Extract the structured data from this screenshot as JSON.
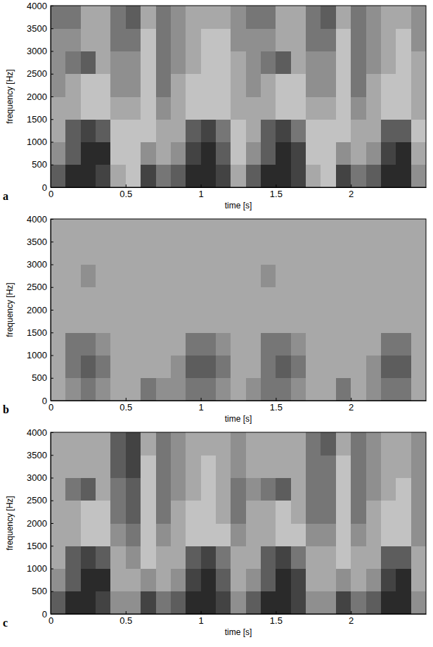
{
  "chart_data": [
    {
      "type": "heatmap",
      "panel": "a",
      "x_label": "time [s]",
      "y_label": "frequency [Hz]",
      "xlim": [
        0,
        2.5
      ],
      "ylim": [
        0,
        4000
      ],
      "xticks": [
        0,
        0.5,
        1,
        1.5,
        2
      ],
      "yticks": [
        0,
        500,
        1000,
        1500,
        2000,
        2500,
        3000,
        3500,
        4000
      ],
      "x_bins": [
        0,
        0.1,
        0.2,
        0.3,
        0.4,
        0.5,
        0.6,
        0.7,
        0.8,
        0.9,
        1,
        1.1,
        1.2,
        1.3,
        1.4,
        1.5,
        1.6,
        1.7,
        1.8,
        1.9,
        2,
        2.1,
        2.2,
        2.3,
        2.4,
        2.5
      ],
      "y_bins": [
        0,
        500,
        1000,
        1500,
        2000,
        2500,
        3000,
        3500,
        4000
      ],
      "zlim": [
        0,
        9
      ],
      "cells": [
        [
          6,
          8,
          8,
          7,
          3,
          2,
          7,
          5,
          6,
          8,
          8,
          7,
          3,
          6,
          8,
          8,
          7,
          3,
          2,
          7,
          5,
          6,
          8,
          8,
          4
        ],
        [
          4,
          6,
          8,
          8,
          2,
          2,
          4,
          3,
          4,
          7,
          8,
          6,
          2,
          4,
          6,
          8,
          7,
          2,
          2,
          4,
          3,
          4,
          7,
          8,
          3
        ],
        [
          3,
          6,
          7,
          6,
          2,
          2,
          2,
          3,
          3,
          6,
          7,
          5,
          2,
          3,
          6,
          7,
          5,
          2,
          2,
          2,
          3,
          3,
          6,
          6,
          2
        ],
        [
          3,
          3,
          2,
          2,
          3,
          3,
          2,
          4,
          3,
          2,
          2,
          2,
          3,
          3,
          3,
          2,
          2,
          3,
          3,
          2,
          4,
          3,
          2,
          2,
          3
        ],
        [
          4,
          3,
          2,
          2,
          4,
          4,
          2,
          5,
          3,
          2,
          2,
          2,
          3,
          4,
          3,
          2,
          2,
          4,
          4,
          2,
          5,
          3,
          2,
          2,
          3
        ],
        [
          4,
          5,
          6,
          3,
          4,
          4,
          2,
          5,
          4,
          3,
          2,
          2,
          3,
          4,
          5,
          6,
          3,
          4,
          4,
          2,
          5,
          4,
          3,
          2,
          3
        ],
        [
          4,
          4,
          3,
          3,
          5,
          5,
          2,
          5,
          4,
          3,
          2,
          2,
          4,
          4,
          4,
          3,
          3,
          5,
          5,
          2,
          5,
          4,
          3,
          2,
          4
        ],
        [
          5,
          5,
          3,
          3,
          5,
          6,
          3,
          5,
          4,
          3,
          3,
          3,
          4,
          5,
          5,
          3,
          3,
          5,
          6,
          3,
          5,
          4,
          3,
          3,
          4
        ]
      ]
    },
    {
      "type": "heatmap",
      "panel": "b",
      "x_label": "time [s]",
      "y_label": "frequency [Hz]",
      "xlim": [
        0,
        2.5
      ],
      "ylim": [
        0,
        4000
      ],
      "xticks": [
        0,
        0.5,
        1,
        1.5,
        2
      ],
      "yticks": [
        0,
        500,
        1000,
        1500,
        2000,
        2500,
        3000,
        3500,
        4000
      ],
      "x_bins": [
        0,
        0.1,
        0.2,
        0.3,
        0.4,
        0.5,
        0.6,
        0.7,
        0.8,
        0.9,
        1,
        1.1,
        1.2,
        1.3,
        1.4,
        1.5,
        1.6,
        1.7,
        1.8,
        1.9,
        2,
        2.1,
        2.2,
        2.3,
        2.4,
        2.5
      ],
      "y_bins": [
        0,
        500,
        1000,
        1500,
        2000,
        2500,
        3000,
        3500,
        4000
      ],
      "zlim": [
        0,
        9
      ],
      "cells": [
        [
          3,
          4,
          5,
          4,
          3,
          3,
          5,
          4,
          4,
          5,
          5,
          4,
          3,
          4,
          5,
          5,
          4,
          3,
          3,
          5,
          3,
          4,
          5,
          5,
          3
        ],
        [
          3,
          5,
          6,
          5,
          3,
          3,
          3,
          3,
          4,
          6,
          6,
          5,
          3,
          3,
          5,
          6,
          5,
          3,
          3,
          3,
          3,
          4,
          6,
          6,
          3
        ],
        [
          3,
          5,
          5,
          4,
          3,
          3,
          3,
          3,
          3,
          5,
          5,
          4,
          3,
          3,
          5,
          5,
          4,
          3,
          3,
          3,
          3,
          3,
          5,
          5,
          3
        ],
        [
          3,
          3,
          3,
          3,
          3,
          3,
          3,
          3,
          3,
          3,
          3,
          3,
          3,
          3,
          3,
          3,
          3,
          3,
          3,
          3,
          3,
          3,
          3,
          3,
          3
        ],
        [
          3,
          3,
          3,
          3,
          3,
          3,
          3,
          3,
          3,
          3,
          3,
          3,
          3,
          3,
          3,
          3,
          3,
          3,
          3,
          3,
          3,
          3,
          3,
          3,
          3
        ],
        [
          3,
          3,
          4,
          3,
          3,
          3,
          3,
          3,
          3,
          3,
          3,
          3,
          3,
          3,
          4,
          3,
          3,
          3,
          3,
          3,
          3,
          3,
          3,
          3,
          3
        ],
        [
          3,
          3,
          3,
          3,
          3,
          3,
          3,
          3,
          3,
          3,
          3,
          3,
          3,
          3,
          3,
          3,
          3,
          3,
          3,
          3,
          3,
          3,
          3,
          3,
          3
        ],
        [
          3,
          3,
          3,
          3,
          3,
          3,
          3,
          3,
          3,
          3,
          3,
          3,
          3,
          3,
          3,
          3,
          3,
          3,
          3,
          3,
          3,
          3,
          3,
          3,
          3
        ]
      ]
    },
    {
      "type": "heatmap",
      "panel": "c",
      "x_label": "time [s]",
      "y_label": "frequency [Hz]",
      "xlim": [
        0,
        2.5
      ],
      "ylim": [
        0,
        4000
      ],
      "xticks": [
        0,
        0.5,
        1,
        1.5,
        2
      ],
      "yticks": [
        0,
        500,
        1000,
        1500,
        2000,
        2500,
        3000,
        3500,
        4000
      ],
      "x_bins": [
        0,
        0.1,
        0.2,
        0.3,
        0.4,
        0.5,
        0.6,
        0.7,
        0.8,
        0.9,
        1,
        1.1,
        1.2,
        1.3,
        1.4,
        1.5,
        1.6,
        1.7,
        1.8,
        1.9,
        2,
        2.1,
        2.2,
        2.3,
        2.4,
        2.5
      ],
      "y_bins": [
        0,
        500,
        1000,
        1500,
        2000,
        2500,
        3000,
        3500,
        4000
      ],
      "zlim": [
        0,
        9
      ],
      "cells": [
        [
          6,
          8,
          8,
          7,
          4,
          4,
          7,
          5,
          6,
          8,
          8,
          7,
          4,
          6,
          8,
          8,
          7,
          4,
          4,
          7,
          5,
          6,
          8,
          8,
          4
        ],
        [
          4,
          6,
          8,
          8,
          3,
          3,
          4,
          3,
          4,
          7,
          8,
          6,
          3,
          4,
          6,
          8,
          7,
          3,
          3,
          4,
          3,
          4,
          7,
          8,
          3
        ],
        [
          3,
          6,
          7,
          6,
          3,
          4,
          2,
          3,
          3,
          6,
          7,
          5,
          3,
          3,
          6,
          7,
          5,
          3,
          3,
          2,
          3,
          3,
          6,
          6,
          3
        ],
        [
          3,
          3,
          2,
          2,
          4,
          5,
          2,
          4,
          3,
          2,
          2,
          2,
          4,
          3,
          3,
          2,
          2,
          4,
          4,
          2,
          4,
          3,
          2,
          2,
          4
        ],
        [
          3,
          3,
          2,
          2,
          5,
          6,
          2,
          5,
          3,
          2,
          2,
          3,
          5,
          3,
          3,
          2,
          3,
          5,
          5,
          2,
          5,
          3,
          2,
          2,
          4
        ],
        [
          3,
          5,
          6,
          3,
          5,
          6,
          2,
          5,
          4,
          3,
          2,
          3,
          5,
          4,
          5,
          6,
          3,
          5,
          5,
          2,
          5,
          4,
          3,
          2,
          4
        ],
        [
          3,
          3,
          3,
          3,
          6,
          7,
          2,
          5,
          4,
          3,
          2,
          3,
          4,
          3,
          3,
          3,
          3,
          5,
          5,
          2,
          5,
          4,
          3,
          3,
          4
        ],
        [
          3,
          3,
          3,
          3,
          6,
          7,
          3,
          5,
          4,
          3,
          3,
          3,
          4,
          3,
          3,
          3,
          3,
          5,
          6,
          3,
          5,
          4,
          3,
          3,
          4
        ]
      ]
    }
  ]
}
